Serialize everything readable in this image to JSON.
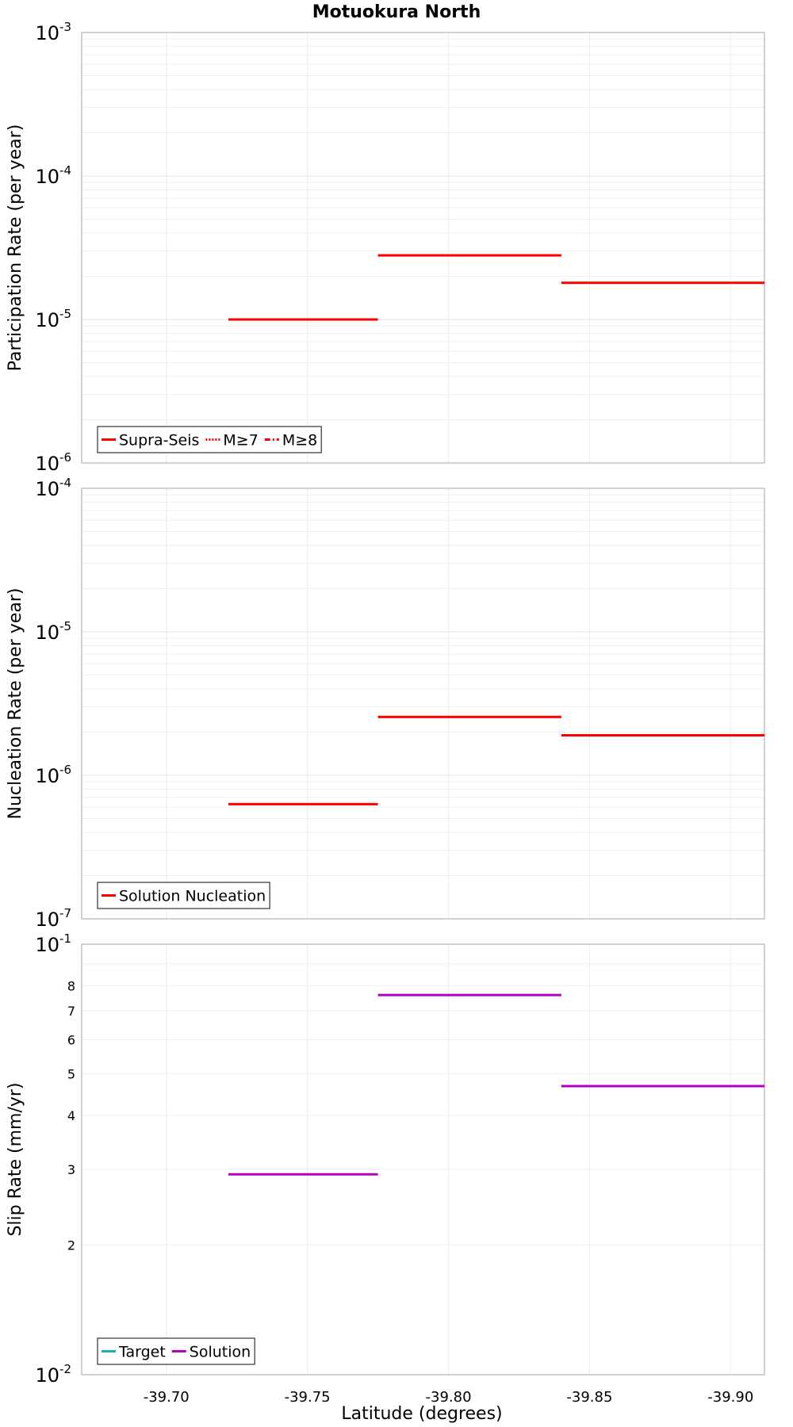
{
  "figure_title": "Motuokura North",
  "x_axis": {
    "label": "Latitude (degrees)",
    "ticks": [
      -39.7,
      -39.75,
      -39.8,
      -39.85,
      -39.9
    ],
    "tick_labels": [
      "-39.70",
      "-39.75",
      "-39.80",
      "-39.85",
      "-39.90"
    ],
    "range": [
      -39.67,
      -39.912
    ]
  },
  "chart_data": [
    {
      "type": "line",
      "ylabel": "Participation Rate (per year)",
      "yscale": "log",
      "ylim": [
        1e-06,
        0.001
      ],
      "grid": true,
      "legend_position": "bottom-left",
      "legend": [
        {
          "name": "Supra-Seis",
          "color": "#ff0000",
          "style": "solid"
        },
        {
          "name": "M≥7",
          "color": "#ff0000",
          "style": "dotted"
        },
        {
          "name": "M≥8",
          "color": "#ff0000",
          "style": "dashdot"
        }
      ],
      "series": [
        {
          "name": "Supra-Seis",
          "color": "#ff0000",
          "segments": [
            {
              "x": [
                -39.722,
                -39.775
              ],
              "y": 1e-05
            },
            {
              "x": [
                -39.775,
                -39.84
              ],
              "y": 2.8e-05
            },
            {
              "x": [
                -39.84,
                -39.912
              ],
              "y": 1.8e-05
            }
          ]
        }
      ]
    },
    {
      "type": "line",
      "ylabel": "Nucleation Rate (per year)",
      "yscale": "log",
      "ylim": [
        1e-07,
        0.0001
      ],
      "grid": true,
      "legend_position": "bottom-left",
      "legend": [
        {
          "name": "Solution Nucleation",
          "color": "#ff0000",
          "style": "solid"
        }
      ],
      "series": [
        {
          "name": "Solution Nucleation",
          "color": "#ff0000",
          "segments": [
            {
              "x": [
                -39.722,
                -39.775
              ],
              "y": 6.3e-07
            },
            {
              "x": [
                -39.775,
                -39.84
              ],
              "y": 2.55e-06
            },
            {
              "x": [
                -39.84,
                -39.912
              ],
              "y": 1.9e-06
            }
          ]
        }
      ]
    },
    {
      "type": "line",
      "ylabel": "Slip Rate (mm/yr)",
      "yscale": "log",
      "ylim": [
        0.01,
        0.1
      ],
      "minor_tick_labels": [
        "2",
        "3",
        "4",
        "5",
        "6",
        "7",
        "8"
      ],
      "grid": true,
      "legend_position": "bottom-left",
      "legend": [
        {
          "name": "Target",
          "color": "#20b2aa",
          "style": "solid"
        },
        {
          "name": "Solution",
          "color": "#b000c0",
          "style": "solid"
        }
      ],
      "series": [
        {
          "name": "Solution",
          "color": "#b000c0",
          "segments": [
            {
              "x": [
                -39.722,
                -39.775
              ],
              "y": 0.0292
            },
            {
              "x": [
                -39.775,
                -39.84
              ],
              "y": 0.0762
            },
            {
              "x": [
                -39.84,
                -39.912
              ],
              "y": 0.0468
            }
          ]
        }
      ]
    }
  ]
}
